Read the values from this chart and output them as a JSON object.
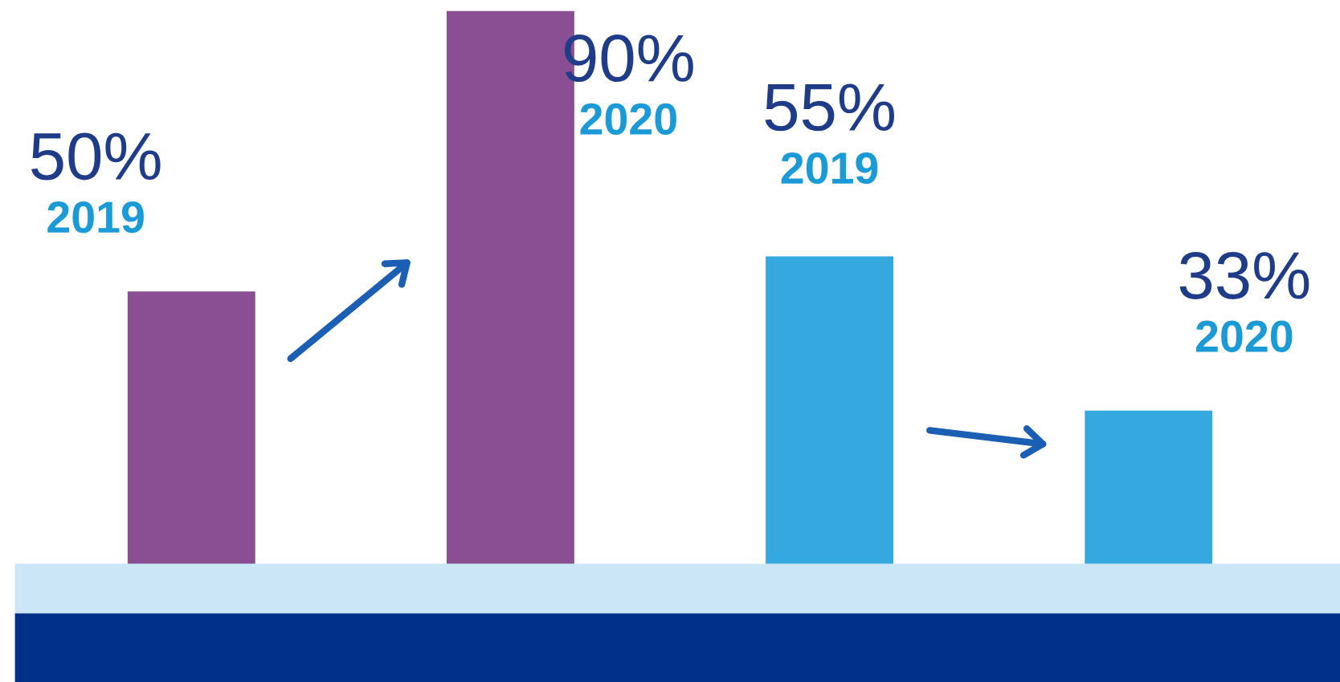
{
  "chart_data": {
    "type": "bar",
    "categories": [
      "2019",
      "2020",
      "2019",
      "2020"
    ],
    "values": [
      50,
      90,
      55,
      33
    ],
    "value_labels": [
      "50%",
      "90%",
      "55%",
      "33%"
    ],
    "colors": [
      "#8a4e93",
      "#8a4e93",
      "#35a8e0",
      "#35a8e0"
    ],
    "tick_labels": false
  }
}
